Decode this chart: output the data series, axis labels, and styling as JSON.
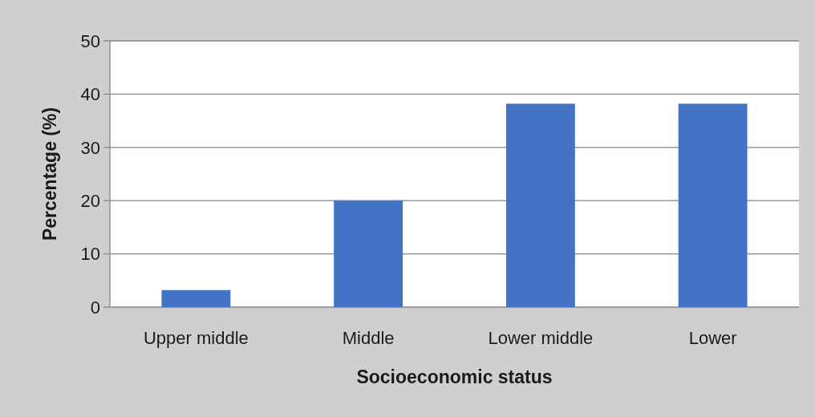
{
  "chart_data": {
    "type": "bar",
    "xlabel": "Socioeconomic status",
    "ylabel": "Percentage (%)",
    "categories": [
      "Upper middle",
      "Middle",
      "Lower middle",
      "Lower"
    ],
    "values": [
      3.2,
      20,
      38.2,
      38.2
    ],
    "color": "#4472c4",
    "ylim": [
      0,
      50
    ],
    "yticks": [
      0,
      10,
      20,
      30,
      40,
      50
    ],
    "grid": "y"
  }
}
